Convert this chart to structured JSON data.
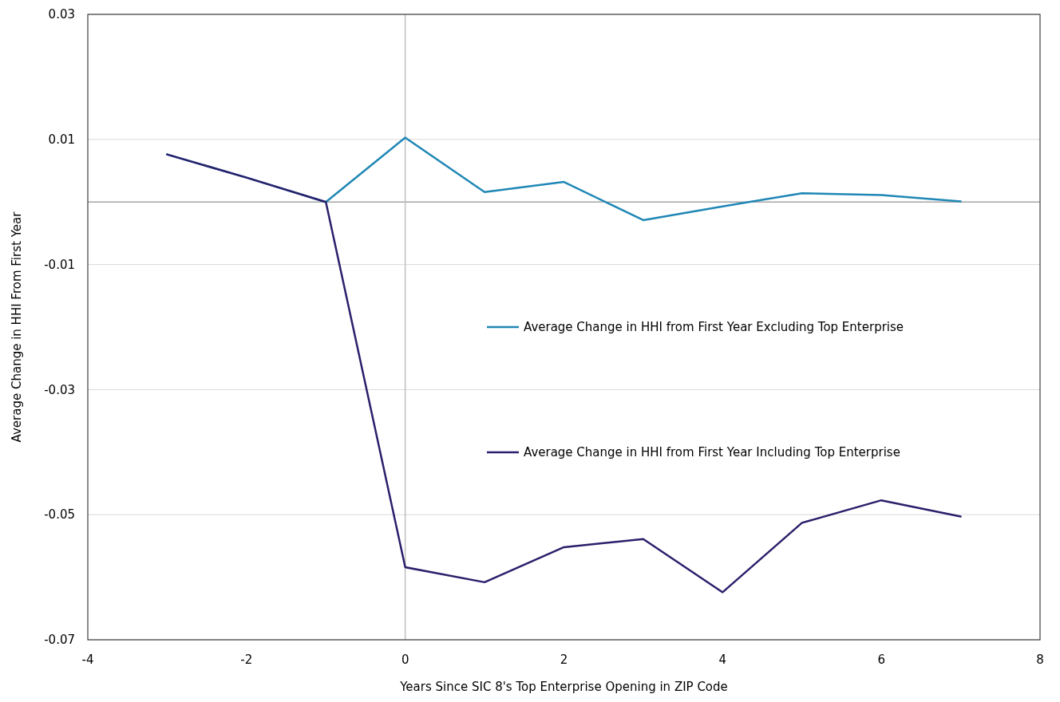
{
  "chart_data": {
    "type": "line",
    "xlabel": "Years Since SIC 8's Top Enterprise Opening in ZIP Code",
    "ylabel": "Average Change in HHI From First Year",
    "x": [
      -3,
      -2,
      -1,
      0,
      1,
      2,
      3,
      4,
      5,
      6,
      7
    ],
    "series": [
      {
        "name": "Average Change in HHI from First Year Excluding Top Enterprise",
        "color": "#1f87b5",
        "values": [
          0.0076,
          0.0039,
          0,
          0.0103,
          0.0016,
          0.0032,
          -0.0029,
          -0.0007,
          0.0014,
          0.0011,
          0.0001
        ]
      },
      {
        "name": "Average Change in HHI from First Year Including Top Enterprise",
        "color": "#2a1f6b",
        "values": [
          0.0076,
          0.0039,
          0,
          -0.0584,
          -0.0608,
          -0.0552,
          -0.0539,
          -0.0624,
          -0.0513,
          -0.0477,
          -0.0503
        ]
      }
    ],
    "xlim": [
      -4,
      8
    ],
    "xticks": [
      -4,
      -2,
      0,
      2,
      4,
      6,
      8
    ],
    "ylim": [
      -0.07,
      0.03
    ],
    "yticks": [
      -0.07,
      -0.05,
      -0.03,
      -0.01,
      0.01,
      0.03
    ],
    "ref_lines": [
      {
        "axis": "y",
        "value": 0,
        "color": "#a6a6a6"
      },
      {
        "axis": "x",
        "value": 0,
        "color": "#bfbfbf"
      }
    ],
    "grid": "y",
    "legend": "right",
    "marker": "none",
    "line_style": "solid"
  }
}
